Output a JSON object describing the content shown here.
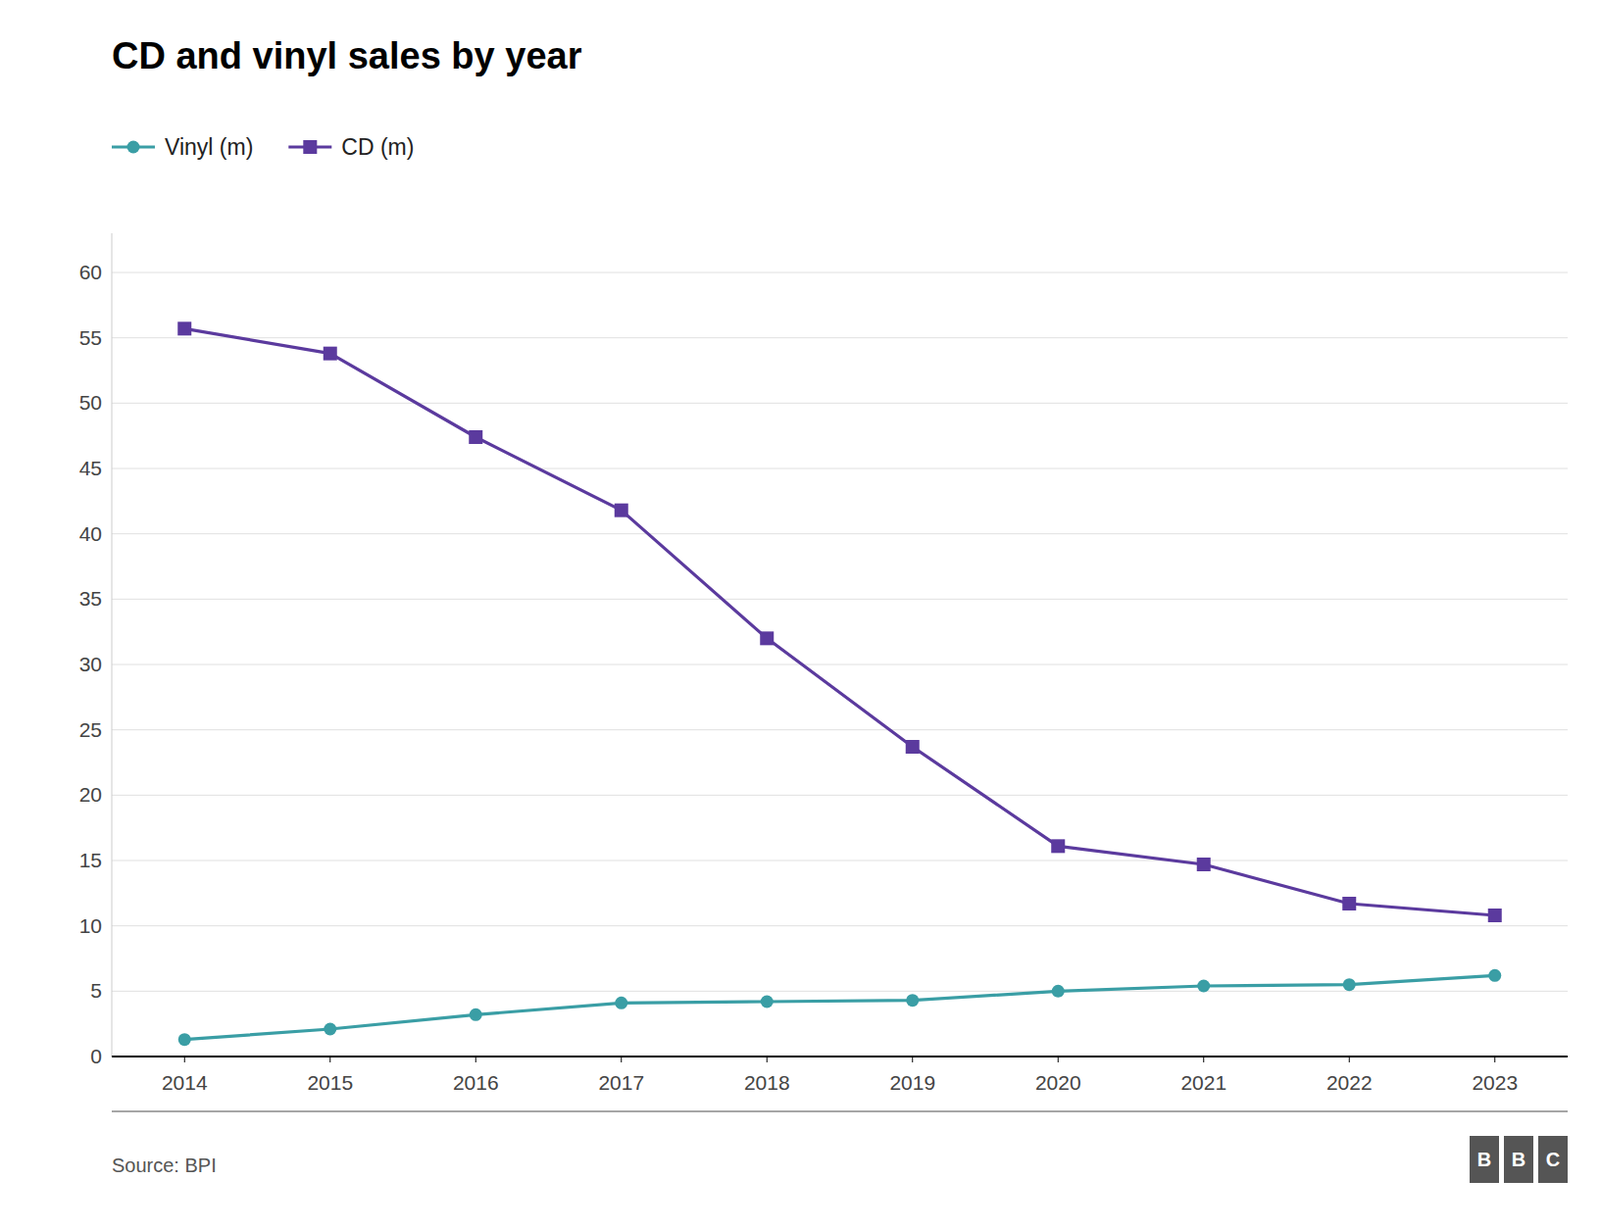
{
  "chart_data": {
    "type": "line",
    "title": "CD and vinyl sales by year",
    "source": "Source: BPI",
    "logo": [
      "B",
      "B",
      "C"
    ],
    "x": [
      2014,
      2015,
      2016,
      2017,
      2018,
      2019,
      2020,
      2021,
      2022,
      2023
    ],
    "xlim": [
      2013.5,
      2023.5
    ],
    "xticks": [
      2014,
      2015,
      2016,
      2017,
      2018,
      2019,
      2020,
      2021,
      2022,
      2023
    ],
    "ylim": [
      0,
      63
    ],
    "yticks": [
      0,
      5,
      10,
      15,
      20,
      25,
      30,
      35,
      40,
      45,
      50,
      55,
      60
    ],
    "grid": true,
    "legend": "top",
    "series": [
      {
        "name": "Vinyl (m)",
        "color": "#3a9ea5",
        "marker": "circle",
        "values": [
          1.3,
          2.1,
          3.2,
          4.1,
          4.2,
          4.3,
          5.0,
          5.4,
          5.5,
          6.2
        ]
      },
      {
        "name": "CD (m)",
        "color": "#5b3a9e",
        "marker": "square",
        "values": [
          55.7,
          53.8,
          47.4,
          41.8,
          32.0,
          23.7,
          16.1,
          14.7,
          11.7,
          10.8
        ]
      }
    ]
  }
}
